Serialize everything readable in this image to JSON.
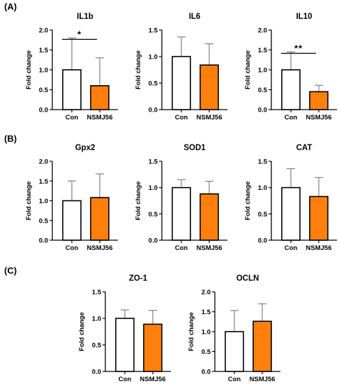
{
  "panels": [
    {
      "label": "(A)"
    },
    {
      "label": "(B)"
    },
    {
      "label": "(C)"
    }
  ],
  "colors": {
    "con_fill": "#ffffff",
    "nsmj56_fill": "#ff7f0e",
    "bar_stroke": "#000000",
    "error_bar": "#808080"
  },
  "chart_data": [
    {
      "panel": "A",
      "type": "bar",
      "title": "IL1b",
      "ylabel": "Fold change",
      "categories": [
        "Con",
        "NSMJ56"
      ],
      "values": [
        1.0,
        0.6
      ],
      "errors": [
        0.8,
        0.7
      ],
      "ylim": [
        0,
        2.0
      ],
      "yticks": [
        "0.0",
        "0.5",
        "1.0",
        "1.5",
        "2.0"
      ],
      "significance": "*"
    },
    {
      "panel": "A",
      "type": "bar",
      "title": "IL6",
      "ylabel": "Fold change",
      "categories": [
        "Con",
        "NSMJ56"
      ],
      "values": [
        1.0,
        0.84
      ],
      "errors": [
        0.37,
        0.4
      ],
      "ylim": [
        0,
        1.5
      ],
      "yticks": [
        "0.0",
        "0.5",
        "1.0",
        "1.5"
      ],
      "significance": ""
    },
    {
      "panel": "A",
      "type": "bar",
      "title": "IL10",
      "ylabel": "Fold change",
      "categories": [
        "Con",
        "NSMJ56"
      ],
      "values": [
        1.0,
        0.45
      ],
      "errors": [
        0.45,
        0.16
      ],
      "ylim": [
        0,
        2.0
      ],
      "yticks": [
        "0.0",
        "0.5",
        "1.0",
        "1.5",
        "2.0"
      ],
      "significance": "**"
    },
    {
      "panel": "B",
      "type": "bar",
      "title": "Gpx2",
      "ylabel": "Fold change",
      "categories": [
        "Con",
        "NSMJ56"
      ],
      "values": [
        1.0,
        1.08
      ],
      "errors": [
        0.5,
        0.6
      ],
      "ylim": [
        0,
        2.0
      ],
      "yticks": [
        "0.0",
        "0.5",
        "1.0",
        "1.5",
        "2.0"
      ],
      "significance": ""
    },
    {
      "panel": "B",
      "type": "bar",
      "title": "SOD1",
      "ylabel": "Fold change",
      "categories": [
        "Con",
        "NSMJ56"
      ],
      "values": [
        1.0,
        0.88
      ],
      "errors": [
        0.15,
        0.24
      ],
      "ylim": [
        0,
        1.5
      ],
      "yticks": [
        "0.0",
        "0.5",
        "1.0",
        "1.5"
      ],
      "significance": ""
    },
    {
      "panel": "B",
      "type": "bar",
      "title": "CAT",
      "ylabel": "Fold change",
      "categories": [
        "Con",
        "NSMJ56"
      ],
      "values": [
        1.0,
        0.83
      ],
      "errors": [
        0.36,
        0.36
      ],
      "ylim": [
        0,
        1.5
      ],
      "yticks": [
        "0.0",
        "0.5",
        "1.0",
        "1.5"
      ],
      "significance": ""
    },
    {
      "panel": "C",
      "type": "bar",
      "title": "ZO-1",
      "ylabel": "Fold change",
      "categories": [
        "Con",
        "NSMJ56"
      ],
      "values": [
        1.0,
        0.89
      ],
      "errors": [
        0.16,
        0.26
      ],
      "ylim": [
        0,
        1.5
      ],
      "yticks": [
        "0.0",
        "0.5",
        "1.0",
        "1.5"
      ],
      "significance": ""
    },
    {
      "panel": "C",
      "type": "bar",
      "title": "OCLN",
      "ylabel": "Fold change",
      "categories": [
        "Con",
        "NSMJ56"
      ],
      "values": [
        1.0,
        1.26
      ],
      "errors": [
        0.53,
        0.44
      ],
      "ylim": [
        0,
        2.0
      ],
      "yticks": [
        "0.0",
        "0.5",
        "1.0",
        "1.5",
        "2.0"
      ],
      "significance": ""
    }
  ]
}
